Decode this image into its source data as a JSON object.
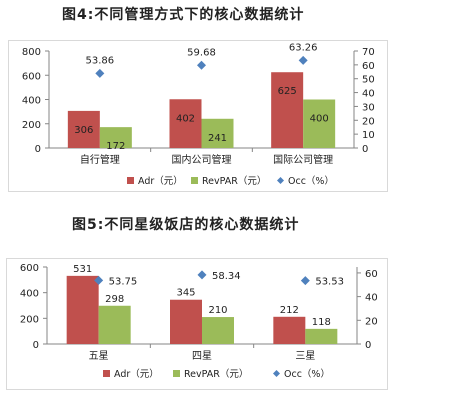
{
  "figures": [
    {
      "title": "图4:不同管理方式下的核心数据统计",
      "chart_data": {
        "type": "bar",
        "categories": [
          "自行管理",
          "国内公司管理",
          "国际公司管理"
        ],
        "series": [
          {
            "name": "Adr（元）",
            "kind": "bar",
            "axis": "left",
            "color": "#c0504d",
            "values": [
              306,
              402,
              625
            ]
          },
          {
            "name": "RevPAR（元）",
            "kind": "bar",
            "axis": "left",
            "color": "#9bbb59",
            "values": [
              172,
              241,
              400
            ]
          },
          {
            "name": "Occ（%）",
            "kind": "scatter",
            "axis": "right",
            "color": "#4f81bd",
            "values": [
              53.86,
              59.68,
              63.26
            ]
          }
        ],
        "left_axis": {
          "min": 0,
          "max": 800,
          "ticks": [
            "0",
            "200",
            "400",
            "600",
            "800"
          ]
        },
        "right_axis": {
          "min": 0,
          "max": 70,
          "ticks": [
            "0",
            "10",
            "20",
            "30",
            "40",
            "50",
            "60",
            "70"
          ]
        },
        "grid": false,
        "legend": "bottom"
      }
    },
    {
      "title": "图5:不同星级饭店的核心数据统计",
      "chart_data": {
        "type": "bar",
        "categories": [
          "五星",
          "四星",
          "三星"
        ],
        "series": [
          {
            "name": "Adr（元）",
            "kind": "bar",
            "axis": "left",
            "color": "#c0504d",
            "values": [
              531,
              345,
              212
            ]
          },
          {
            "name": "RevPAR（元）",
            "kind": "bar",
            "axis": "left",
            "color": "#9bbb59",
            "values": [
              298,
              210,
              118
            ]
          },
          {
            "name": "Occ（%）",
            "kind": "scatter",
            "axis": "right",
            "color": "#4f81bd",
            "values": [
              53.75,
              58.34,
              53.53
            ]
          }
        ],
        "left_axis": {
          "min": 0,
          "max": 600,
          "ticks": [
            "0",
            "200",
            "400",
            "600"
          ]
        },
        "right_axis": {
          "min": 0,
          "max": 65,
          "ticks": [
            "0",
            "20",
            "40",
            "60"
          ]
        },
        "grid": false,
        "legend": "bottom"
      }
    }
  ]
}
